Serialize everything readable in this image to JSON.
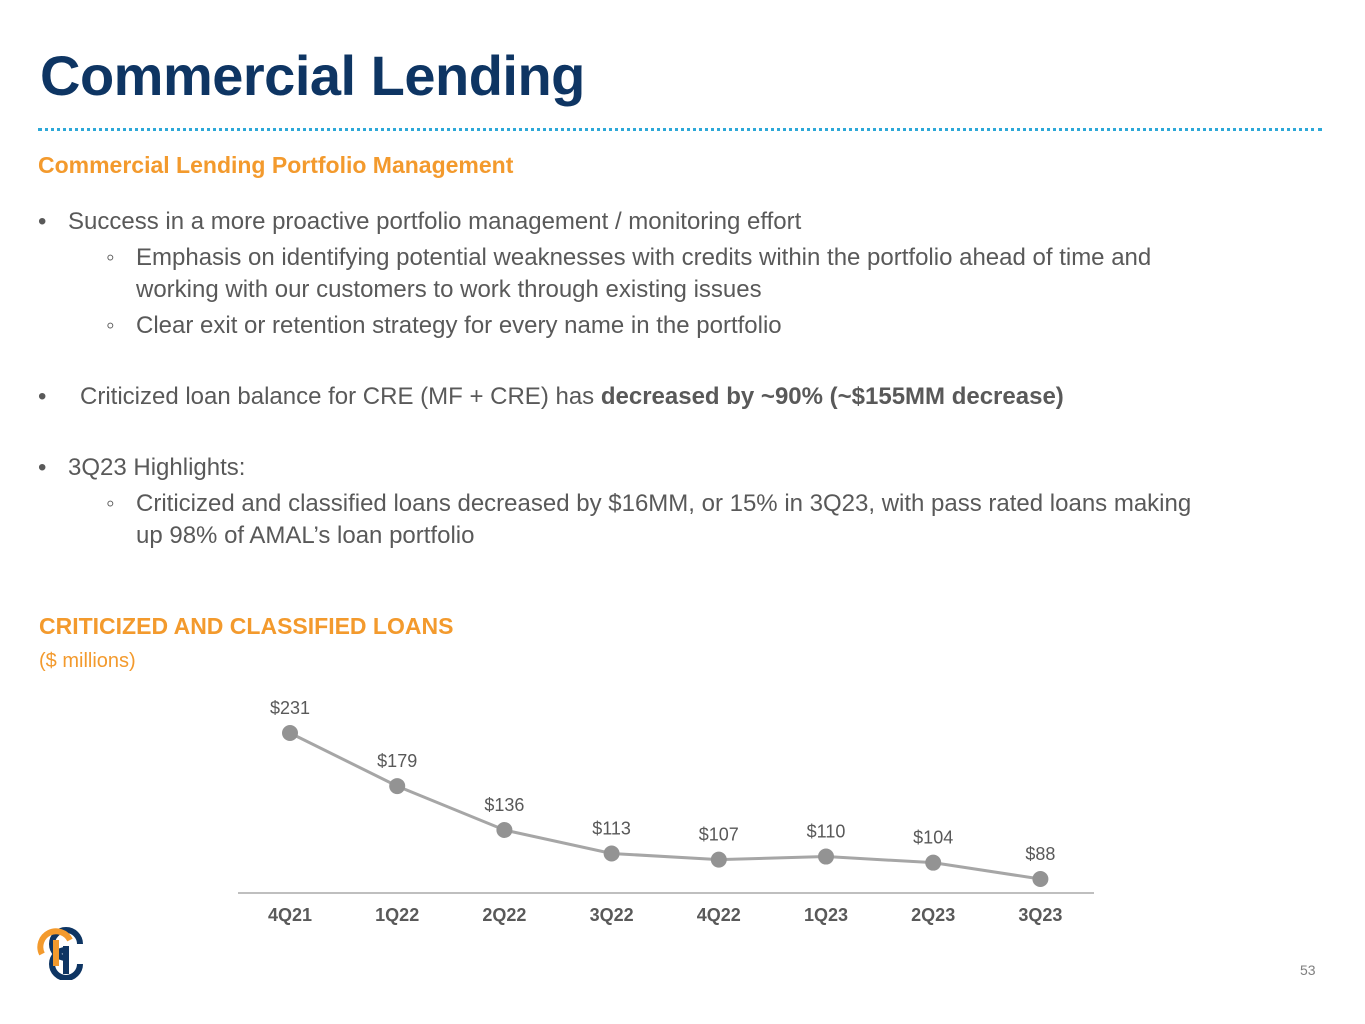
{
  "slide": {
    "title": "Commercial Lending",
    "subtitle": "Commercial Lending Portfolio Management",
    "page_number": "53"
  },
  "bullets": {
    "b1": "Success in a more proactive portfolio management / monitoring effort",
    "b1_sub1_line1": "Emphasis on identifying potential weaknesses with credits within the portfolio ahead of time and",
    "b1_sub1_line2": "working with our customers to work through existing issues",
    "b1_sub2": "Clear exit or retention strategy for every name in the portfolio",
    "b2_text": "Criticized loan balance for CRE (MF + CRE) has ",
    "b2_bold": "decreased by ~90% (~$155MM decrease)",
    "b3": "3Q23 Highlights:",
    "b3_sub1_line1": "Criticized and classified loans decreased by $16MM, or 15% in 3Q23, with pass rated loans making",
    "b3_sub1_line2": "up 98% of AMAL’s loan portfolio",
    "bullet_marker": "•",
    "sub_marker": "◦"
  },
  "chart_data": {
    "type": "line",
    "title": "CRITICIZED AND CLASSIFIED LOANS",
    "subtitle": "($ millions)",
    "categories": [
      "4Q21",
      "1Q22",
      "2Q22",
      "3Q22",
      "4Q22",
      "1Q23",
      "2Q23",
      "3Q23"
    ],
    "values": [
      231,
      179,
      136,
      113,
      107,
      110,
      104,
      88
    ],
    "data_labels": [
      "$231",
      "$179",
      "$136",
      "$113",
      "$107",
      "$110",
      "$104",
      "$88"
    ],
    "xlabel": "",
    "ylabel": "",
    "grid": false,
    "legend": "none",
    "line_color": "#a6a6a6",
    "marker_color": "#939393"
  },
  "colors": {
    "title": "#0e3563",
    "accent": "#f39a2d",
    "rule": "#2da8d8",
    "body_text": "#595959"
  },
  "logo": {
    "icon": "company-logo-icon"
  }
}
